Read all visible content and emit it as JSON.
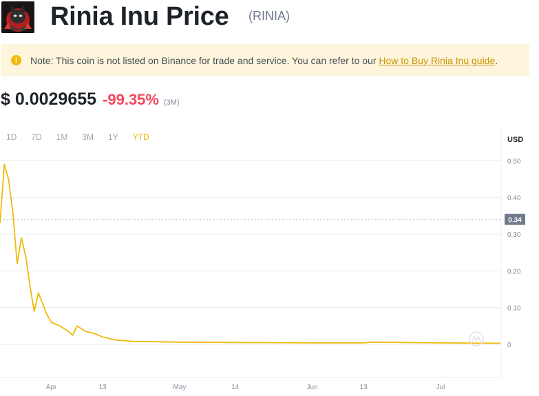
{
  "header": {
    "logo_icon": "cat-mascot-icon",
    "title": "Rinia Inu Price",
    "symbol": "(RINIA)"
  },
  "note": {
    "icon": "warning-icon",
    "text": "Note: This coin is not listed on Binance for trade and service. You can refer to our ",
    "link": "How to Buy Rinia Inu guide",
    "suffix": "."
  },
  "price": {
    "value": "$ 0.0029655",
    "change": "-99.35%",
    "period": "(3M)"
  },
  "tabs": [
    {
      "label": "1D",
      "active": false
    },
    {
      "label": "7D",
      "active": false
    },
    {
      "label": "1M",
      "active": false
    },
    {
      "label": "3M",
      "active": false
    },
    {
      "label": "1Y",
      "active": false
    },
    {
      "label": "YTD",
      "active": true
    }
  ],
  "colors": {
    "line": "#f0b90b",
    "grid": "#eaecef",
    "axis_text": "#848e9c",
    "negative": "#f6465d",
    "accent": "#f0b90b"
  },
  "chart_data": {
    "type": "line",
    "ylabel": "USD",
    "ylim": [
      -0.09,
      0.51
    ],
    "y_ticks": [
      "0.50",
      "0.40",
      "0.30",
      "0.20",
      "0.10",
      "0"
    ],
    "y_tick_values": [
      0.5,
      0.4,
      0.3,
      0.2,
      0.1,
      0
    ],
    "crosshair_label": "0.34",
    "crosshair_value": 0.34,
    "x_ticks": [
      "Apr",
      "13",
      "May",
      "14",
      "Jun",
      "13",
      "Jul"
    ],
    "x_tick_values": [
      "2023-04-01",
      "2023-04-13",
      "2023-05-01",
      "2023-05-14",
      "2023-06-01",
      "2023-06-13",
      "2023-07-01"
    ],
    "xlim": [
      "2023-03-20",
      "2023-07-15"
    ],
    "watermark_icon": "coinmarketcap-icon",
    "series": [
      {
        "x": [
          "2023-03-20",
          "2023-03-21",
          "2023-03-22",
          "2023-03-23",
          "2023-03-24",
          "2023-03-25",
          "2023-03-26",
          "2023-03-27",
          "2023-03-28",
          "2023-03-29",
          "2023-03-30",
          "2023-03-31",
          "2023-04-01",
          "2023-04-03",
          "2023-04-05",
          "2023-04-06",
          "2023-04-07",
          "2023-04-09",
          "2023-04-11",
          "2023-04-13",
          "2023-04-16",
          "2023-04-20",
          "2023-05-01",
          "2023-05-14",
          "2023-06-01",
          "2023-06-13",
          "2023-06-15",
          "2023-07-01",
          "2023-07-15"
        ],
        "y": [
          0.33,
          0.49,
          0.45,
          0.36,
          0.22,
          0.29,
          0.24,
          0.16,
          0.09,
          0.14,
          0.11,
          0.08,
          0.06,
          0.05,
          0.035,
          0.025,
          0.05,
          0.035,
          0.03,
          0.02,
          0.012,
          0.008,
          0.006,
          0.005,
          0.004,
          0.004,
          0.006,
          0.004,
          0.003
        ]
      }
    ]
  }
}
